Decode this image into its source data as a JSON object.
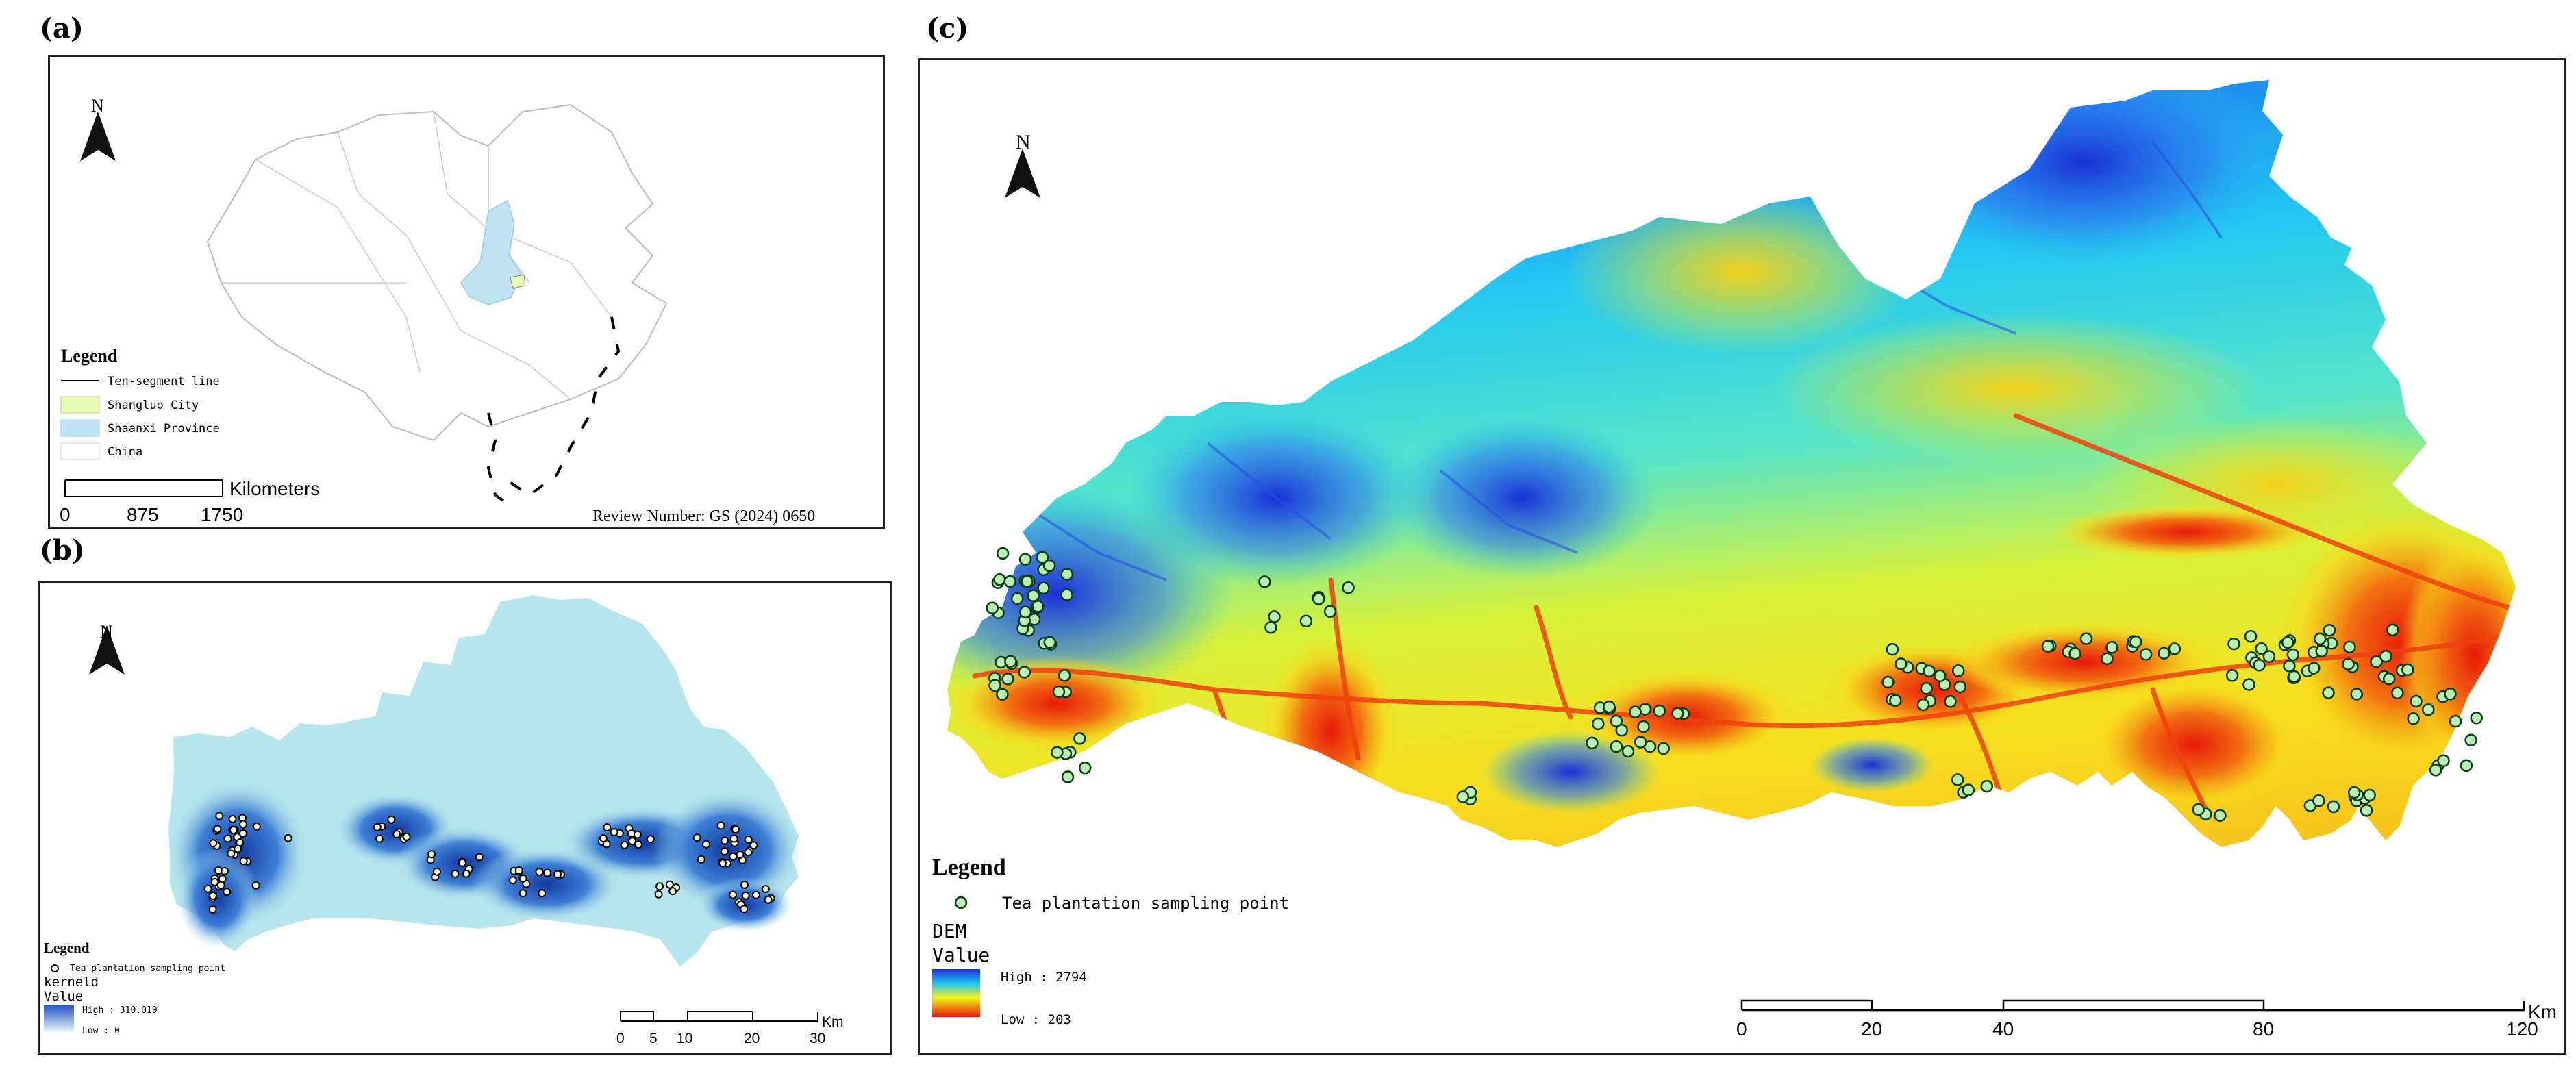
{
  "panel_a": {
    "label": "(a)",
    "north": "N",
    "legend_title": "Legend",
    "legend_items": [
      {
        "label": "Ten-segment line",
        "symbol": "line",
        "color": "#000000"
      },
      {
        "label": "Shangluo City",
        "symbol": "patch",
        "color": "#e6fbb8"
      },
      {
        "label": "Shaanxi Province",
        "symbol": "patch",
        "color": "#bfe2f5"
      },
      {
        "label": "China",
        "symbol": "patch",
        "color": "#ffffff"
      }
    ],
    "scale_unit": "Kilometers",
    "scale_ticks": [
      "0",
      "875",
      "1750"
    ],
    "review_number": "Review Number: GS (2024) 0650"
  },
  "panel_b": {
    "label": "(b)",
    "north": "N",
    "legend_title": "Legend",
    "point_label": "Tea plantation sampling point",
    "raster_title": "kerneld",
    "value_label": "Value",
    "high_label": "High : 310.019",
    "low_label": "Low : 0",
    "scale_ticks": [
      "0",
      "5",
      "10",
      "20",
      "30"
    ],
    "scale_unit": "Km"
  },
  "panel_c": {
    "label": "(c)",
    "north": "N",
    "legend_title": "Legend",
    "point_label": "Tea plantation sampling point",
    "raster_title": "DEM",
    "value_label": "Value",
    "high_label": "High : 2794",
    "low_label": "Low : 203",
    "scale_ticks": [
      "0",
      "20",
      "40",
      "80",
      "120"
    ],
    "scale_unit": "Km"
  },
  "colors": {
    "dem_high": "#1a2fd6",
    "dem_mid": "#f2f21a",
    "dem_low": "#e81a0a",
    "kernel_high": "#1f4fc8",
    "kernel_low": "#b6e6ec",
    "point_fill": "#b9efb0"
  }
}
